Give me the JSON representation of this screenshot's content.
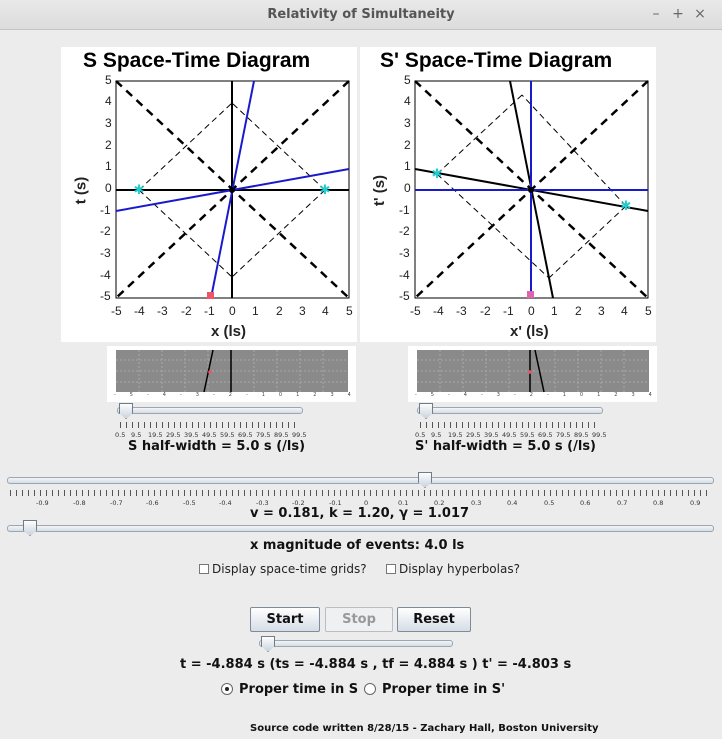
{
  "window": {
    "title": "Relativity of Simultaneity",
    "controls": [
      "–",
      "+",
      "×"
    ]
  },
  "diagram_s": {
    "title": "S Space-Time Diagram",
    "xlabel": "x (ls)",
    "ylabel": "t (s)",
    "ticks": [
      "-5",
      "-4",
      "-3",
      "-2",
      "-1",
      "0",
      "1",
      "2",
      "3",
      "4",
      "5"
    ]
  },
  "diagram_sp": {
    "title": "S' Space-Time Diagram",
    "xlabel": "x' (ls)",
    "ylabel": "t' (s)",
    "ticks": [
      "-5",
      "-4",
      "-3",
      "-2",
      "-1",
      "0",
      "1",
      "2",
      "3",
      "4",
      "5"
    ]
  },
  "halfwidth_slider": {
    "labels": [
      "0.5",
      "9.5",
      "19.5",
      "29.5",
      "39.5",
      "49.5",
      "59.5",
      "69.5",
      "79.5",
      "89.5",
      "99.5"
    ]
  },
  "halfwidth_s_label": "S half-width = 5.0 s (/ls)",
  "halfwidth_sp_label": "S' half-width = 5.0 s (/ls)",
  "velocity_slider": {
    "labels": [
      "-0.9",
      "-0.8",
      "-0.7",
      "-0.6",
      "-0.5",
      "-0.4",
      "-0.3",
      "-0.2",
      "-0.1",
      "0",
      "0.1",
      "0.2",
      "0.3",
      "0.4",
      "0.5",
      "0.6",
      "0.7",
      "0.8",
      "0.9"
    ]
  },
  "velocity_readout": "v =  0.181, k =  1.20, γ =  1.017",
  "magnitude_readout": "x magnitude of events: 4.0 ls",
  "checkboxes": {
    "grids": "Display space-time grids?",
    "hyperbolas": "Display hyperbolas?"
  },
  "buttons": {
    "start": "Start",
    "stop": "Stop",
    "reset": "Reset"
  },
  "time_readout": "t = -4.884 s (ts = -4.884 s , tf = 4.884 s ) t' = -4.803 s",
  "radios": {
    "proper_s": "Proper time in S",
    "proper_sp": "Proper time in S'"
  },
  "footer": "Source code written 8/28/15 - Zachary Hall, Boston University",
  "colors": {
    "world_line": "#1a1acc",
    "event_marker": "#22cccc",
    "clock_marker": "#ee5566"
  }
}
